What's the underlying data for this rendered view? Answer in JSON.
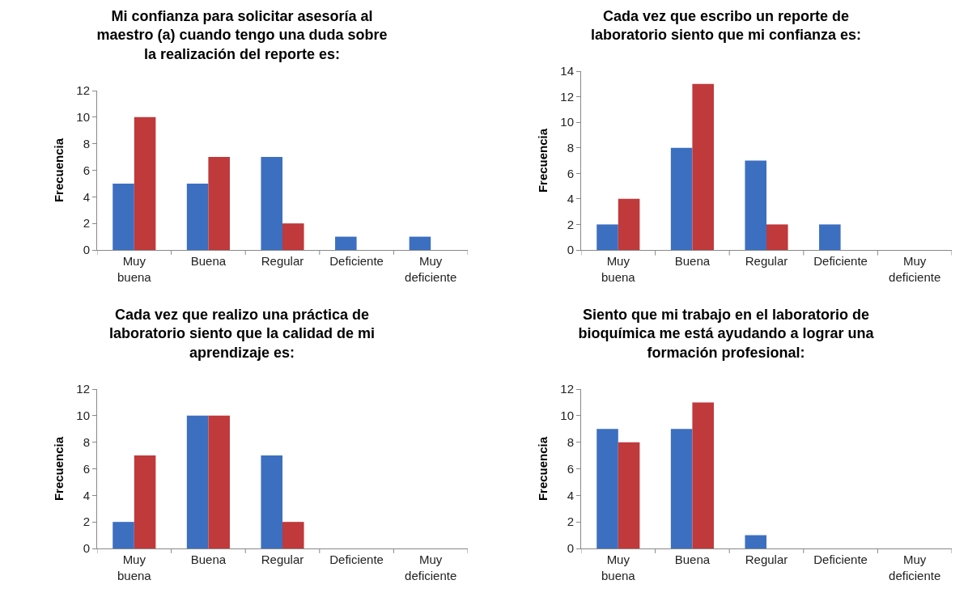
{
  "chart_data": [
    {
      "type": "bar",
      "title": "Mi confianza para solicitar asesoría al\nmaestro (a) cuando tengo una duda sobre\nla realización del reporte es:",
      "ylabel": "Frecuencia",
      "categories": [
        "Muy buena",
        "Buena",
        "Regular",
        "Deficiente",
        "Muy deficiente"
      ],
      "series": [
        {
          "color": "#3c6fc0",
          "values": [
            5,
            5,
            7,
            1,
            1
          ]
        },
        {
          "color": "#c0393b",
          "values": [
            10,
            7,
            2,
            0,
            0
          ]
        }
      ],
      "ylim": [
        0,
        12
      ],
      "yticks": [
        0,
        2,
        4,
        6,
        8,
        10,
        12
      ],
      "grid": false
    },
    {
      "type": "bar",
      "title": "Cada vez que escribo un reporte de\nlaboratorio siento que mi confianza es:",
      "ylabel": "Frecuencia",
      "categories": [
        "Muy buena",
        "Buena",
        "Regular",
        "Deficiente",
        "Muy deficiente"
      ],
      "series": [
        {
          "color": "#3c6fc0",
          "values": [
            2,
            8,
            7,
            2,
            0
          ]
        },
        {
          "color": "#c0393b",
          "values": [
            4,
            13,
            2,
            0,
            0
          ]
        }
      ],
      "ylim": [
        0,
        14
      ],
      "yticks": [
        0,
        2,
        4,
        6,
        8,
        10,
        12,
        14
      ],
      "grid": false
    },
    {
      "type": "bar",
      "title": "Cada vez que realizo una práctica de\nlaboratorio siento que la calidad de mi\naprendizaje es:",
      "ylabel": "Frecuencia",
      "categories": [
        "Muy buena",
        "Buena",
        "Regular",
        "Deficiente",
        "Muy deficiente"
      ],
      "series": [
        {
          "color": "#3c6fc0",
          "values": [
            2,
            10,
            7,
            0,
            0
          ]
        },
        {
          "color": "#c0393b",
          "values": [
            7,
            10,
            2,
            0,
            0
          ]
        }
      ],
      "ylim": [
        0,
        12
      ],
      "yticks": [
        0,
        2,
        4,
        6,
        8,
        10,
        12
      ],
      "grid": false
    },
    {
      "type": "bar",
      "title": "Siento que mi trabajo en el laboratorio de\nbioquímica me está ayudando a lograr una\nformación profesional:",
      "ylabel": "Frecuencia",
      "categories": [
        "Muy buena",
        "Buena",
        "Regular",
        "Deficiente",
        "Muy deficiente"
      ],
      "series": [
        {
          "color": "#3c6fc0",
          "values": [
            9,
            9,
            1,
            0,
            0
          ]
        },
        {
          "color": "#c0393b",
          "values": [
            8,
            11,
            0,
            0,
            0
          ]
        }
      ],
      "ylim": [
        0,
        12
      ],
      "yticks": [
        0,
        2,
        4,
        6,
        8,
        10,
        12
      ],
      "grid": false
    }
  ]
}
